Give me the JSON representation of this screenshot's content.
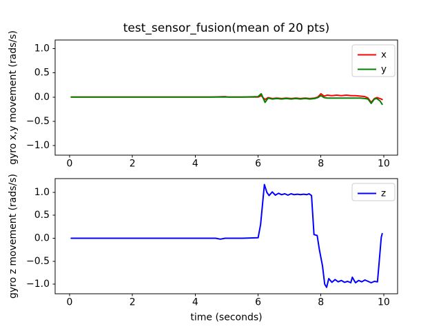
{
  "figure": {
    "title": "test_sensor_fusion(mean of 20 pts)",
    "background": "#ffffff",
    "text_color": "#000000",
    "spine_color": "#000000",
    "legend_edge_color": "#cccccc",
    "legend_face_color": "#ffffff"
  },
  "chart_data": [
    {
      "type": "line",
      "title": "",
      "xlabel": "",
      "ylabel": "gyro x,y movement (rads/s)",
      "xlim": [
        -0.46,
        10.44
      ],
      "ylim": [
        -1.2,
        1.18
      ],
      "xticks": [
        0,
        2,
        4,
        6,
        8,
        10
      ],
      "xtick_labels": [
        "0",
        "2",
        "4",
        "6",
        "8",
        "10"
      ],
      "yticks": [
        -1.0,
        -0.5,
        0.0,
        0.5,
        1.0
      ],
      "ytick_labels": [
        "−1.0",
        "−0.5",
        "0.0",
        "0.5",
        "1.0"
      ],
      "grid": false,
      "legend_position": "upper right",
      "series": [
        {
          "name": "x",
          "color": "#ff0000",
          "points": [
            [
              0.05,
              0
            ],
            [
              0.5,
              0
            ],
            [
              1,
              0
            ],
            [
              1.5,
              0
            ],
            [
              2,
              0
            ],
            [
              2.5,
              0
            ],
            [
              3,
              0
            ],
            [
              3.5,
              0
            ],
            [
              4,
              0
            ],
            [
              4.5,
              0
            ],
            [
              4.95,
              0.01
            ],
            [
              5.05,
              0
            ],
            [
              5.5,
              0
            ],
            [
              6,
              0
            ],
            [
              6.1,
              0.03
            ],
            [
              6.22,
              -0.05
            ],
            [
              6.32,
              -0.01
            ],
            [
              6.45,
              -0.03
            ],
            [
              6.6,
              -0.02
            ],
            [
              6.75,
              -0.03
            ],
            [
              6.9,
              -0.02
            ],
            [
              7.05,
              -0.03
            ],
            [
              7.2,
              -0.02
            ],
            [
              7.35,
              -0.03
            ],
            [
              7.5,
              -0.02
            ],
            [
              7.65,
              -0.03
            ],
            [
              7.8,
              -0.02
            ],
            [
              7.9,
              0
            ],
            [
              8.0,
              0.07
            ],
            [
              8.1,
              0.02
            ],
            [
              8.2,
              0.04
            ],
            [
              8.35,
              0.03
            ],
            [
              8.5,
              0.04
            ],
            [
              8.65,
              0.03
            ],
            [
              8.8,
              0.04
            ],
            [
              8.95,
              0.03
            ],
            [
              9.1,
              0.03
            ],
            [
              9.25,
              0.02
            ],
            [
              9.4,
              0.01
            ],
            [
              9.5,
              -0.02
            ],
            [
              9.6,
              -0.11
            ],
            [
              9.7,
              -0.03
            ],
            [
              9.78,
              -0.01
            ],
            [
              9.88,
              -0.03
            ],
            [
              9.95,
              -0.05
            ]
          ]
        },
        {
          "name": "y",
          "color": "#008000",
          "points": [
            [
              0.05,
              0
            ],
            [
              0.5,
              0
            ],
            [
              1,
              0
            ],
            [
              1.5,
              0
            ],
            [
              2,
              0
            ],
            [
              2.5,
              0
            ],
            [
              3,
              0
            ],
            [
              3.5,
              0
            ],
            [
              4,
              0
            ],
            [
              4.5,
              0
            ],
            [
              5,
              0
            ],
            [
              5.5,
              0
            ],
            [
              6,
              0.01
            ],
            [
              6.1,
              0.07
            ],
            [
              6.22,
              -0.11
            ],
            [
              6.32,
              -0.02
            ],
            [
              6.45,
              -0.04
            ],
            [
              6.6,
              -0.03
            ],
            [
              6.75,
              -0.04
            ],
            [
              6.9,
              -0.03
            ],
            [
              7.05,
              -0.04
            ],
            [
              7.2,
              -0.03
            ],
            [
              7.35,
              -0.04
            ],
            [
              7.5,
              -0.03
            ],
            [
              7.65,
              -0.04
            ],
            [
              7.8,
              -0.03
            ],
            [
              7.9,
              -0.01
            ],
            [
              8.0,
              0.03
            ],
            [
              8.1,
              -0.01
            ],
            [
              8.2,
              -0.02
            ],
            [
              8.35,
              -0.02
            ],
            [
              8.5,
              -0.02
            ],
            [
              8.65,
              -0.02
            ],
            [
              8.8,
              -0.02
            ],
            [
              8.95,
              -0.02
            ],
            [
              9.1,
              -0.02
            ],
            [
              9.25,
              -0.02
            ],
            [
              9.4,
              -0.03
            ],
            [
              9.5,
              -0.04
            ],
            [
              9.6,
              -0.13
            ],
            [
              9.7,
              -0.04
            ],
            [
              9.78,
              -0.03
            ],
            [
              9.88,
              -0.08
            ],
            [
              9.95,
              -0.15
            ]
          ]
        }
      ]
    },
    {
      "type": "line",
      "title": "",
      "xlabel": "time (seconds)",
      "ylabel": "gyro z movement (rads/s)",
      "xlim": [
        -0.46,
        10.44
      ],
      "ylim": [
        -1.21,
        1.3
      ],
      "xticks": [
        0,
        2,
        4,
        6,
        8,
        10
      ],
      "xtick_labels": [
        "0",
        "2",
        "4",
        "6",
        "8",
        "10"
      ],
      "yticks": [
        -1.0,
        -0.5,
        0.0,
        0.5,
        1.0
      ],
      "ytick_labels": [
        "−1.0",
        "−0.5",
        "0.0",
        "0.5",
        "1.0"
      ],
      "grid": false,
      "legend_position": "upper right",
      "series": [
        {
          "name": "z",
          "color": "#0000ff",
          "points": [
            [
              0.05,
              0
            ],
            [
              0.5,
              0
            ],
            [
              1,
              0
            ],
            [
              1.5,
              0
            ],
            [
              2,
              0
            ],
            [
              2.5,
              0
            ],
            [
              3,
              0
            ],
            [
              3.5,
              0
            ],
            [
              4,
              0
            ],
            [
              4.5,
              0
            ],
            [
              4.65,
              0
            ],
            [
              4.8,
              -0.02
            ],
            [
              4.95,
              0
            ],
            [
              5.5,
              0
            ],
            [
              6.0,
              0.01
            ],
            [
              6.08,
              0.3
            ],
            [
              6.2,
              1.17
            ],
            [
              6.28,
              1.0
            ],
            [
              6.35,
              0.93
            ],
            [
              6.45,
              1.01
            ],
            [
              6.55,
              0.94
            ],
            [
              6.65,
              0.98
            ],
            [
              6.75,
              0.95
            ],
            [
              6.85,
              0.97
            ],
            [
              6.95,
              0.94
            ],
            [
              7.05,
              0.97
            ],
            [
              7.15,
              0.95
            ],
            [
              7.25,
              0.96
            ],
            [
              7.35,
              0.95
            ],
            [
              7.45,
              0.96
            ],
            [
              7.55,
              0.95
            ],
            [
              7.62,
              0.97
            ],
            [
              7.7,
              0.93
            ],
            [
              7.78,
              0.08
            ],
            [
              7.88,
              0.06
            ],
            [
              7.95,
              -0.25
            ],
            [
              8.05,
              -0.6
            ],
            [
              8.12,
              -1.0
            ],
            [
              8.18,
              -1.07
            ],
            [
              8.25,
              -0.88
            ],
            [
              8.35,
              -0.96
            ],
            [
              8.45,
              -0.9
            ],
            [
              8.55,
              -0.95
            ],
            [
              8.65,
              -0.92
            ],
            [
              8.75,
              -0.96
            ],
            [
              8.85,
              -0.94
            ],
            [
              8.95,
              -0.97
            ],
            [
              9.0,
              -0.85
            ],
            [
              9.1,
              -0.97
            ],
            [
              9.2,
              -0.92
            ],
            [
              9.3,
              -0.95
            ],
            [
              9.4,
              -0.91
            ],
            [
              9.5,
              -0.94
            ],
            [
              9.6,
              -0.97
            ],
            [
              9.7,
              -0.94
            ],
            [
              9.8,
              -0.95
            ],
            [
              9.85,
              -0.55
            ],
            [
              9.92,
              0.02
            ],
            [
              9.95,
              0.1
            ]
          ]
        }
      ]
    }
  ]
}
